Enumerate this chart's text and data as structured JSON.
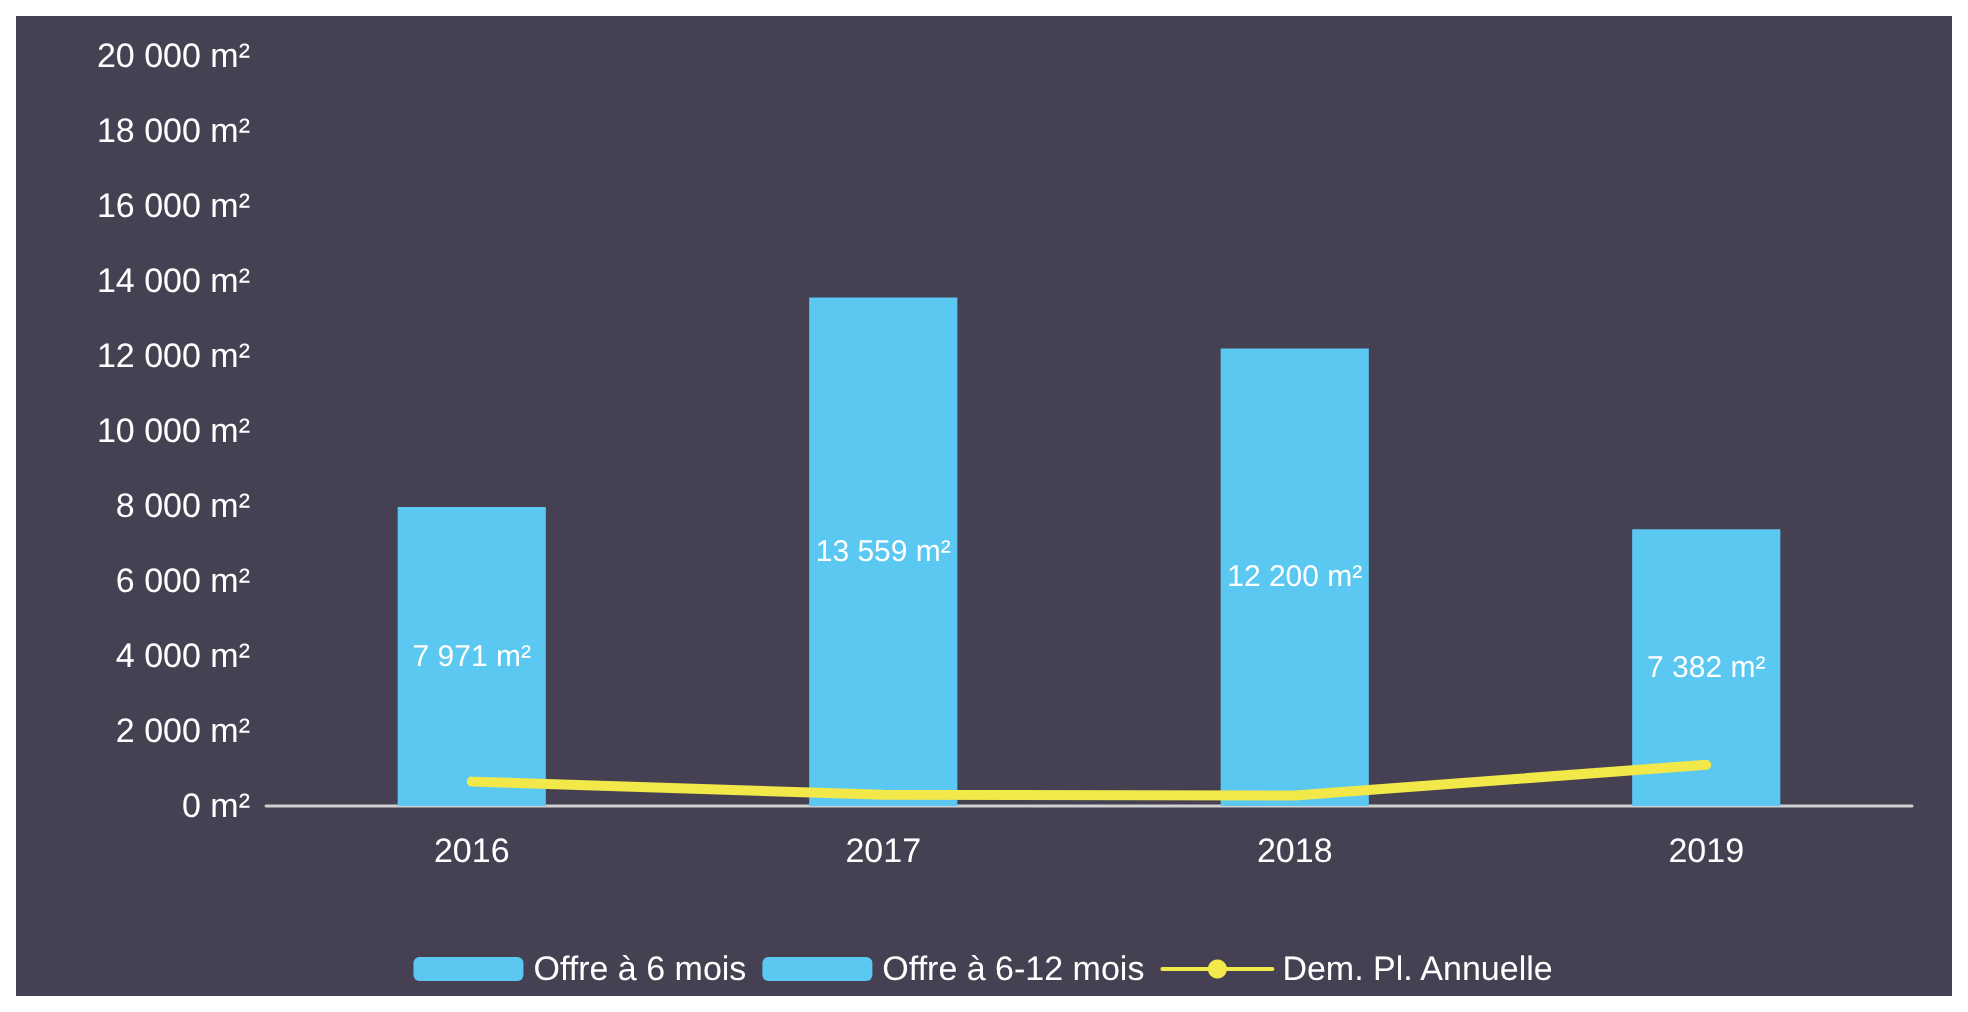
{
  "chart_data": {
    "type": "bar",
    "categories": [
      "2016",
      "2017",
      "2018",
      "2019"
    ],
    "series": [
      {
        "name": "Offre à 6 mois",
        "color": "#5bc8f2",
        "values": [
          7971,
          13559,
          12200,
          7382
        ],
        "value_labels": [
          "7 971 m²",
          "13 559 m²",
          "12 200 m²",
          "7 382 m²"
        ]
      },
      {
        "name": "Offre à 6-12 mois",
        "color": "#5bc8f2",
        "values": [
          null,
          null,
          null,
          null
        ]
      },
      {
        "name": "Dem. Pl. Annuelle",
        "type": "line",
        "color": "#f2e84a",
        "values": [
          650,
          300,
          280,
          1100
        ]
      }
    ],
    "stacked": true,
    "ylim": [
      0,
      20000
    ],
    "yticks": [
      {
        "value": 0,
        "label": "0 m²"
      },
      {
        "value": 2000,
        "label": "2 000 m²"
      },
      {
        "value": 4000,
        "label": "4 000 m²"
      },
      {
        "value": 6000,
        "label": "6 000 m²"
      },
      {
        "value": 8000,
        "label": "8 000 m²"
      },
      {
        "value": 10000,
        "label": "10 000 m²"
      },
      {
        "value": 12000,
        "label": "12 000 m²"
      },
      {
        "value": 14000,
        "label": "14 000 m²"
      },
      {
        "value": 16000,
        "label": "16 000 m²"
      },
      {
        "value": 18000,
        "label": "18 000 m²"
      },
      {
        "value": 20000,
        "label": "20 000 m²"
      }
    ],
    "grid": false,
    "legend": "bottom",
    "marker": "none"
  }
}
